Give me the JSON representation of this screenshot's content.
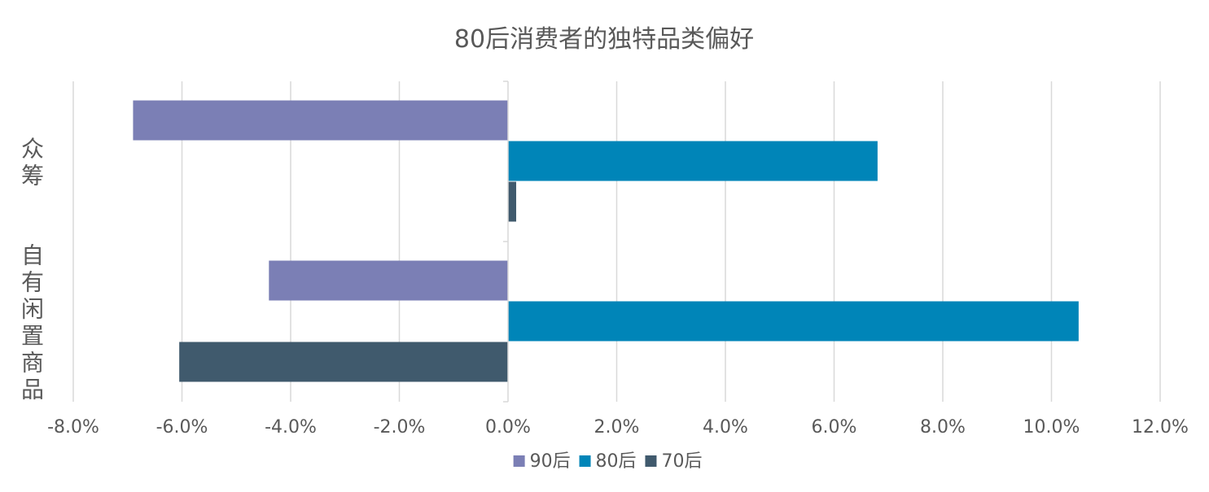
{
  "chart_data": {
    "type": "bar",
    "orientation": "horizontal",
    "title": "80后消费者的独特品类偏好",
    "categories": [
      "众筹",
      "自有闲置商品"
    ],
    "series": [
      {
        "name": "90后",
        "color": "#7B7FB5",
        "values": [
          -0.069,
          -0.044
        ]
      },
      {
        "name": "80后",
        "color": "#0085B8",
        "values": [
          0.068,
          0.105
        ]
      },
      {
        "name": "70后",
        "color": "#405A6D",
        "values": [
          0.0015,
          -0.0605
        ]
      }
    ],
    "xlim": [
      -0.08,
      0.12
    ],
    "xticks": [
      -0.08,
      -0.06,
      -0.04,
      -0.02,
      0,
      0.02,
      0.04,
      0.06,
      0.08,
      0.1,
      0.12
    ],
    "xtick_labels": [
      "-8.0%",
      "-6.0%",
      "-4.0%",
      "-2.0%",
      "0.0%",
      "2.0%",
      "4.0%",
      "6.0%",
      "8.0%",
      "10.0%",
      "12.0%"
    ],
    "grid": true,
    "legend_position": "bottom"
  }
}
